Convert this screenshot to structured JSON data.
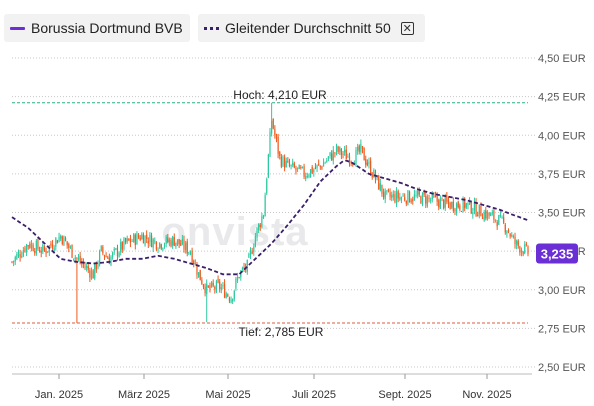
{
  "legend": {
    "stock_label": "Borussia Dortmund BVB",
    "ma_label": "Gleitender Durchschnitt 50",
    "close_glyph": "✕"
  },
  "watermark": "onvista",
  "current_price": "3,235",
  "colors": {
    "up": "#2cc9a0",
    "down": "#ef5a1e",
    "ma": "#3a1f6b",
    "accent": "#6b2fd6",
    "hilo": "#26b07f",
    "low_line": "#e05a3a"
  },
  "chart_data": {
    "type": "candlestick",
    "y_ticks": [
      {
        "v": 2.5,
        "label": "2,50 EUR"
      },
      {
        "v": 2.75,
        "label": "2,75 EUR"
      },
      {
        "v": 3.0,
        "label": "3,00 EUR"
      },
      {
        "v": 3.25,
        "label": "3,25 EUR"
      },
      {
        "v": 3.5,
        "label": "3,50 EUR"
      },
      {
        "v": 3.75,
        "label": "3,75 EUR"
      },
      {
        "v": 4.0,
        "label": "4,00 EUR"
      },
      {
        "v": 4.25,
        "label": "4,25 EUR"
      },
      {
        "v": 4.5,
        "label": "4,50 EUR"
      }
    ],
    "ylim": [
      2.5,
      4.5
    ],
    "x_ticks": [
      "Jan. 2025",
      "März 2025",
      "Mai 2025",
      "Juli 2025",
      "Sept. 2025",
      "Nov. 2025"
    ],
    "high": {
      "value": 4.21,
      "label": "Hoch: 4,210 EUR"
    },
    "low": {
      "value": 2.785,
      "label": "Tief: 2,785 EUR"
    },
    "last": 3.235,
    "anchors": [
      [
        0,
        3.18
      ],
      [
        10,
        3.3
      ],
      [
        20,
        3.25
      ],
      [
        30,
        3.35
      ],
      [
        40,
        3.2
      ],
      [
        50,
        3.1
      ],
      [
        55,
        3.25
      ],
      [
        60,
        3.2
      ],
      [
        70,
        3.3
      ],
      [
        80,
        3.35
      ],
      [
        90,
        3.3
      ],
      [
        100,
        3.32
      ],
      [
        110,
        3.25
      ],
      [
        115,
        3.1
      ],
      [
        120,
        3.0
      ],
      [
        128,
        3.02
      ],
      [
        135,
        2.95
      ],
      [
        140,
        3.1
      ],
      [
        145,
        3.15
      ],
      [
        150,
        3.35
      ],
      [
        155,
        3.5
      ],
      [
        160,
        4.1
      ],
      [
        165,
        3.85
      ],
      [
        170,
        3.8
      ],
      [
        180,
        3.75
      ],
      [
        190,
        3.8
      ],
      [
        200,
        3.9
      ],
      [
        210,
        3.85
      ],
      [
        215,
        3.9
      ],
      [
        220,
        3.8
      ],
      [
        225,
        3.7
      ],
      [
        230,
        3.6
      ],
      [
        240,
        3.6
      ],
      [
        250,
        3.6
      ],
      [
        260,
        3.58
      ],
      [
        270,
        3.55
      ],
      [
        280,
        3.55
      ],
      [
        290,
        3.5
      ],
      [
        300,
        3.45
      ],
      [
        305,
        3.4
      ],
      [
        310,
        3.3
      ],
      [
        318,
        3.24
      ]
    ],
    "ma_anchors": [
      [
        0,
        3.47
      ],
      [
        10,
        3.4
      ],
      [
        20,
        3.3
      ],
      [
        30,
        3.2
      ],
      [
        40,
        3.18
      ],
      [
        50,
        3.17
      ],
      [
        60,
        3.18
      ],
      [
        70,
        3.2
      ],
      [
        80,
        3.2
      ],
      [
        90,
        3.22
      ],
      [
        100,
        3.2
      ],
      [
        110,
        3.17
      ],
      [
        120,
        3.14
      ],
      [
        130,
        3.1
      ],
      [
        140,
        3.1
      ],
      [
        150,
        3.2
      ],
      [
        160,
        3.3
      ],
      [
        170,
        3.42
      ],
      [
        180,
        3.55
      ],
      [
        190,
        3.7
      ],
      [
        200,
        3.8
      ],
      [
        205,
        3.84
      ],
      [
        210,
        3.82
      ],
      [
        220,
        3.75
      ],
      [
        230,
        3.72
      ],
      [
        240,
        3.69
      ],
      [
        250,
        3.65
      ],
      [
        260,
        3.62
      ],
      [
        270,
        3.6
      ],
      [
        280,
        3.58
      ],
      [
        290,
        3.55
      ],
      [
        300,
        3.52
      ],
      [
        310,
        3.48
      ],
      [
        318,
        3.45
      ]
    ]
  }
}
